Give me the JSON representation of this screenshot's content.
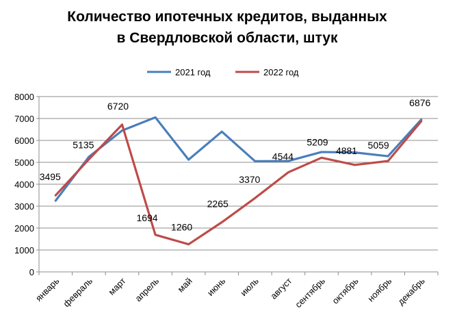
{
  "chart_data": {
    "type": "line",
    "title": "Количество  ипотечных кредитов, выданных",
    "subtitle": "в Свердловской области, штук",
    "categories": [
      "январь",
      "февраль",
      "март",
      "апрель",
      "май",
      "июнь",
      "июль",
      "август",
      "сентябрь",
      "октябрь",
      "ноябрь",
      "декабрь"
    ],
    "ylim": [
      0,
      8000
    ],
    "yticks": [
      0,
      1000,
      2000,
      3000,
      4000,
      5000,
      6000,
      7000,
      8000
    ],
    "grid": true,
    "legend_position": "top",
    "series": [
      {
        "name": "2021 год",
        "color": "#4a7ebb",
        "values": [
          3250,
          5250,
          6450,
          7050,
          5120,
          6400,
          5050,
          5060,
          5470,
          5450,
          5280,
          6950
        ],
        "labels": []
      },
      {
        "name": "2022 год",
        "color": "#be4b48",
        "values": [
          3495,
          5135,
          6720,
          1694,
          1260,
          2265,
          3370,
          4544,
          5209,
          4881,
          5059,
          6876
        ],
        "labels": [
          "3495",
          "5135",
          "6720",
          "1694",
          "1260",
          "2265",
          "3370",
          "4544",
          "5209",
          "4881",
          "5059",
          "6876"
        ]
      }
    ]
  }
}
